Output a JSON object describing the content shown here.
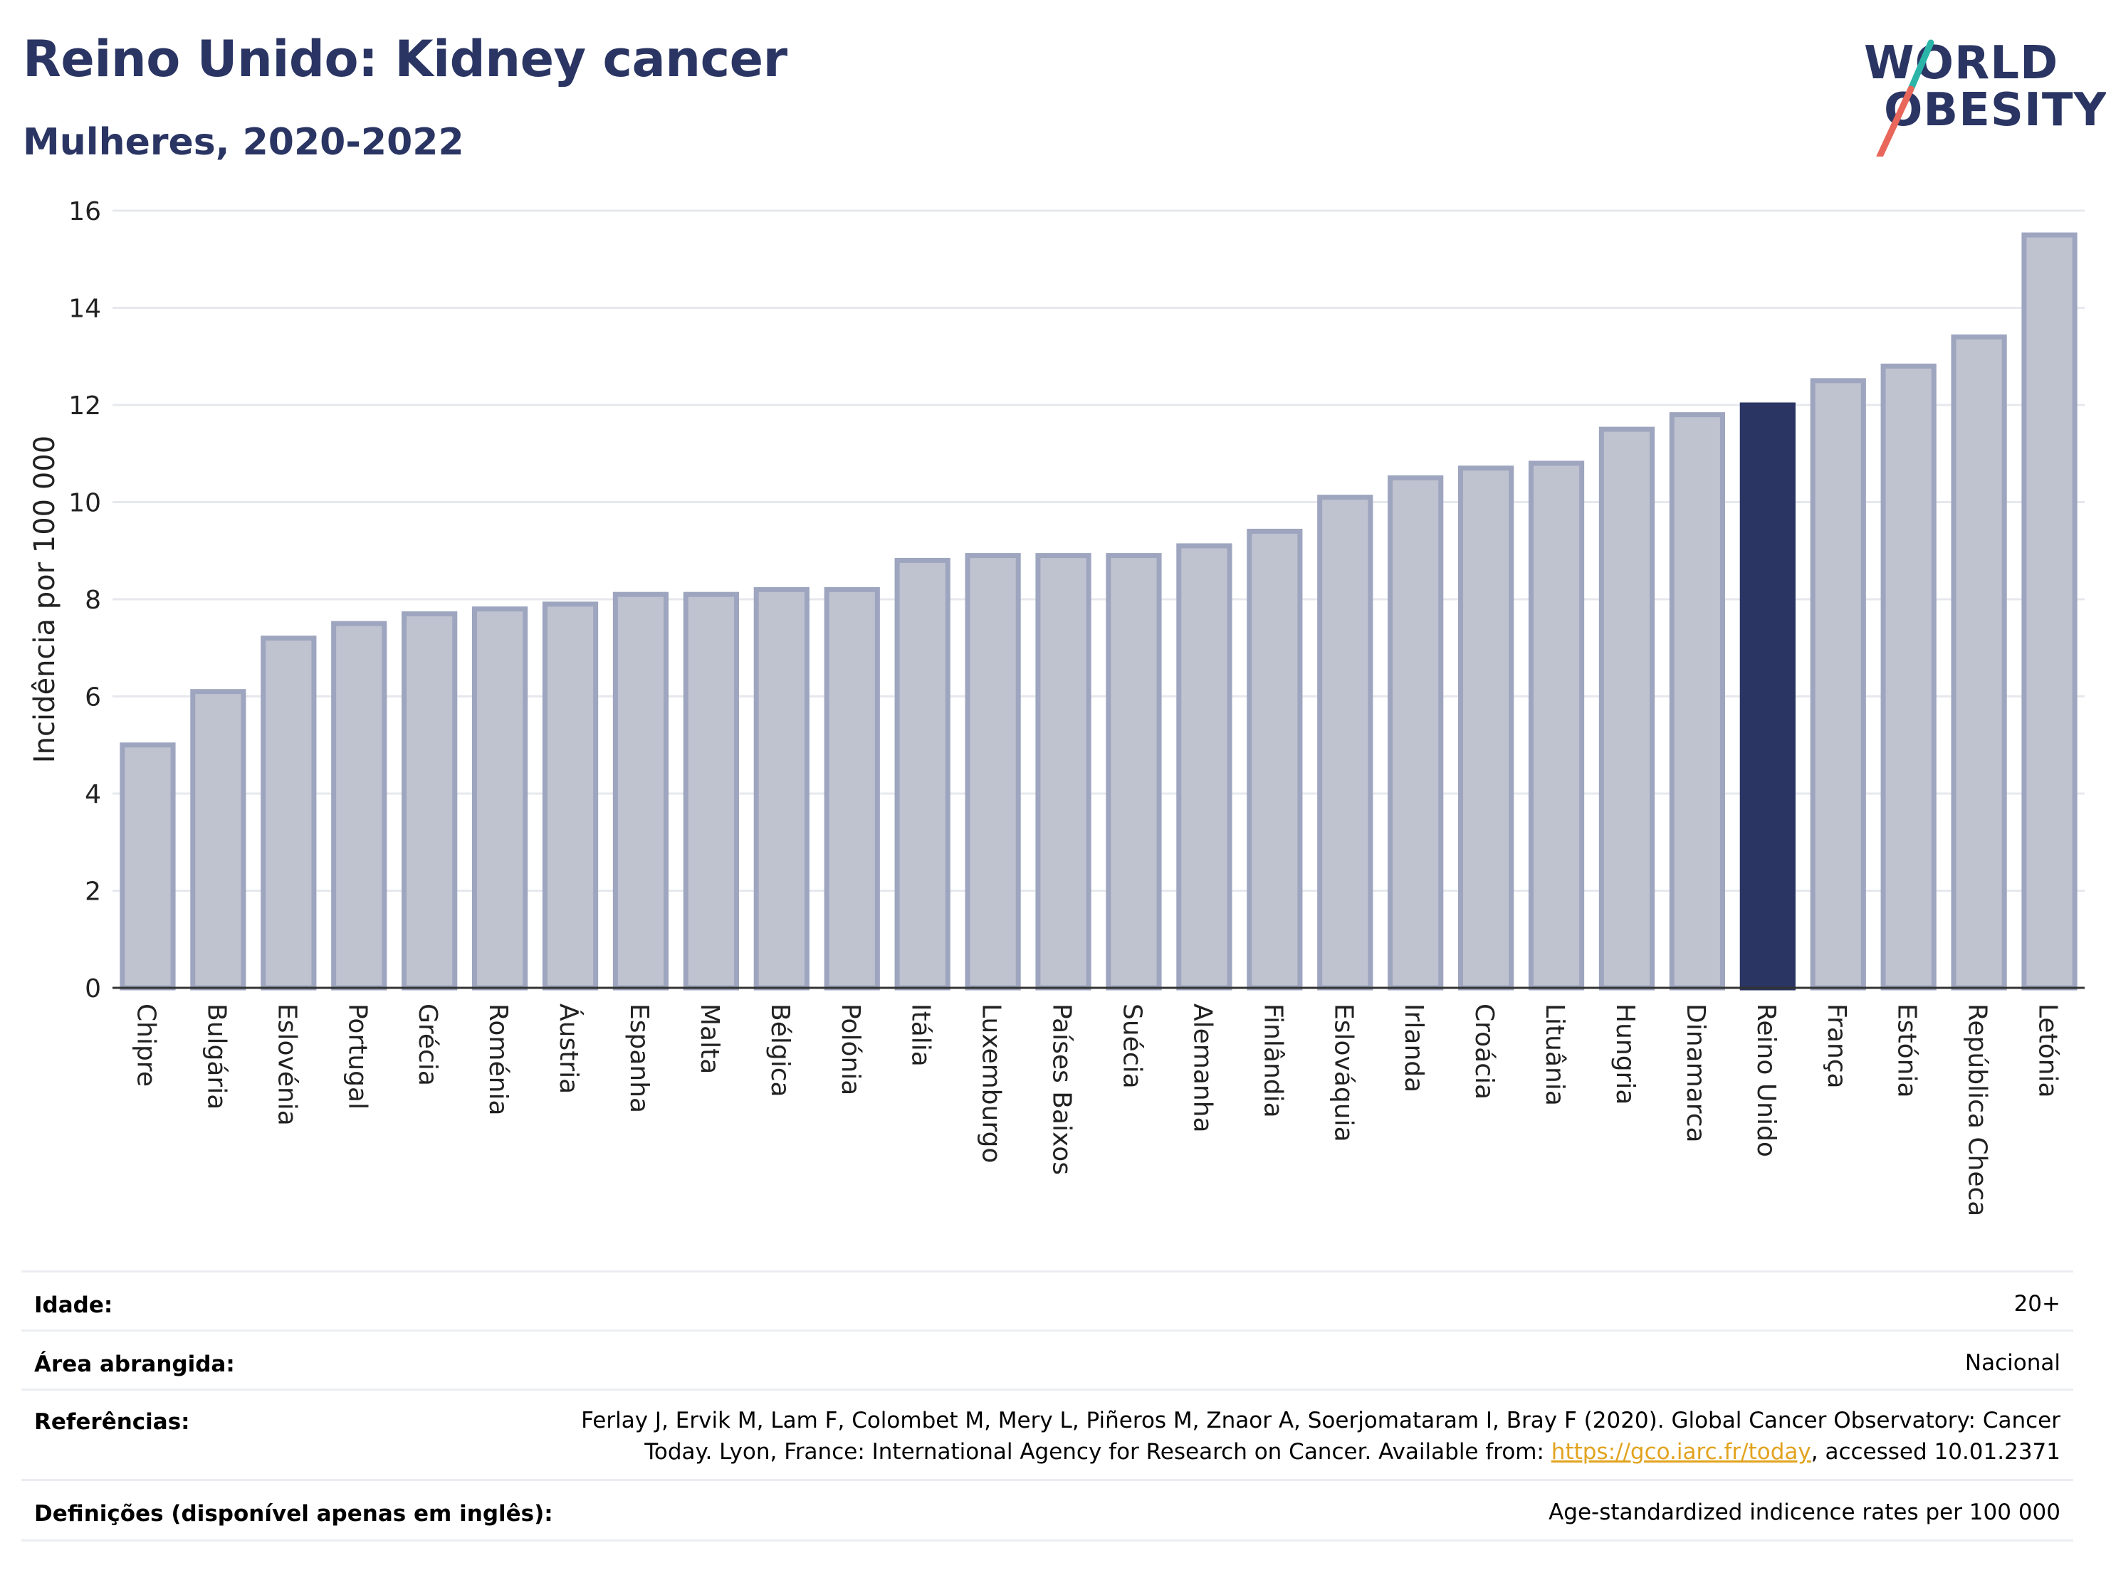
{
  "header": {
    "title": "Reino Unido: Kidney cancer",
    "subtitle": "Mulheres, 2020-2022"
  },
  "logo": {
    "line1": "WORLD",
    "line2": "OBESITY",
    "accent_teal": "#2bb5a8",
    "accent_coral": "#e8665a"
  },
  "colors": {
    "bar": "#bfc2cf",
    "bar_border": "#9ea5bf",
    "highlight": "#2a3563",
    "title": "#2a3563",
    "grid": "#e6e8ee"
  },
  "chart_data": {
    "type": "bar",
    "ylabel": "Incidência por 100 000",
    "ylim": [
      0,
      16
    ],
    "yticks": [
      0,
      2,
      4,
      6,
      8,
      10,
      12,
      14,
      16
    ],
    "grid": true,
    "highlight": "Reino Unido",
    "categories": [
      "Chipre",
      "Bulgária",
      "Eslovénia",
      "Portugal",
      "Grécia",
      "Roménia",
      "Áustria",
      "Espanha",
      "Malta",
      "Bélgica",
      "Polónia",
      "Itália",
      "Luxemburgo",
      "Países Baixos",
      "Suécia",
      "Alemanha",
      "Finlândia",
      "Eslováquia",
      "Irlanda",
      "Croácia",
      "Lituânia",
      "Hungria",
      "Dinamarca",
      "Reino Unido",
      "França",
      "Estónia",
      "República Checa",
      "Letónia"
    ],
    "values": [
      5.0,
      6.1,
      7.2,
      7.5,
      7.7,
      7.8,
      7.9,
      8.1,
      8.1,
      8.2,
      8.2,
      8.8,
      8.9,
      8.9,
      8.9,
      9.1,
      9.4,
      10.1,
      10.5,
      10.7,
      10.8,
      11.5,
      11.8,
      12.0,
      12.5,
      12.8,
      13.4,
      15.5
    ]
  },
  "footer": {
    "rows": [
      {
        "label": "Idade:",
        "value": "20+"
      },
      {
        "label": "Área abrangida:",
        "value": "Nacional"
      },
      {
        "label": "Referências:",
        "value_line1": "Ferlay J, Ervik M, Lam F, Colombet M, Mery L, Piñeros M, Znaor A, Soerjomataram I, Bray F (2020). Global Cancer Observatory: Cancer",
        "value_line2_pre": "Today. Lyon, France: International Agency for Research on Cancer. Available from: ",
        "link": "https://gco.iarc.fr/today",
        "value_line2_post": ", accessed 10.01.2371"
      },
      {
        "label": "Definições (disponível apenas em inglês):",
        "value": "Age-standardized indicence rates per 100 000"
      }
    ]
  }
}
